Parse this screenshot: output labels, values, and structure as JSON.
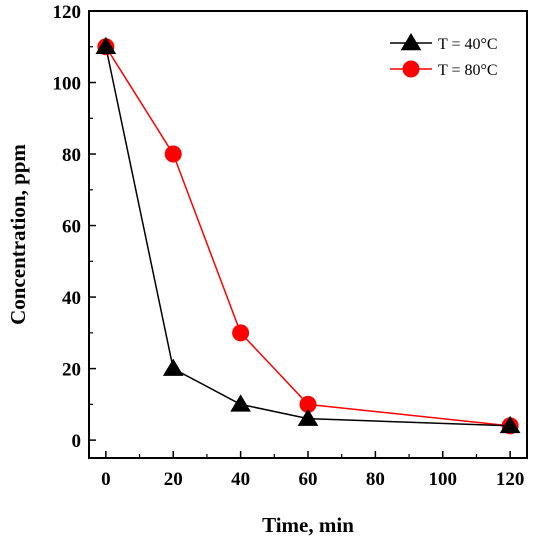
{
  "chart_data": {
    "type": "line",
    "xlabel": "Time, min",
    "ylabel": "Concentration, ppm",
    "xlim": [
      -5,
      125
    ],
    "ylim": [
      -5,
      120
    ],
    "xticks": [
      0,
      20,
      40,
      60,
      80,
      100,
      120
    ],
    "yticks": [
      0,
      20,
      40,
      60,
      80,
      100,
      120
    ],
    "legend_position": "top-right",
    "grid": false,
    "series": [
      {
        "name": "T = 40°C",
        "color": "#000000",
        "marker": "triangle",
        "x": [
          0,
          20,
          40,
          60,
          120
        ],
        "y": [
          110,
          20,
          10,
          6,
          4
        ]
      },
      {
        "name": "T = 80°C",
        "color": "#ff0000",
        "marker": "circle",
        "x": [
          0,
          20,
          40,
          60,
          120
        ],
        "y": [
          110,
          80,
          30,
          10,
          4
        ]
      }
    ]
  }
}
